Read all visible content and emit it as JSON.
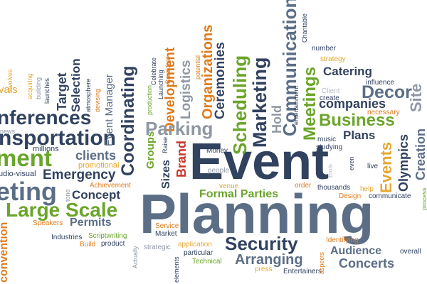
{
  "cloud": {
    "colors": {
      "navy": "#31425f",
      "slate": "#5b6e86",
      "grey": "#8e97a3",
      "light": "#b7bfca",
      "green": "#6aa52a",
      "orange": "#de7a1c",
      "gold": "#e7a733",
      "red": "#c9362a"
    },
    "words": {
      "planning": "Planning",
      "event": "Event",
      "large_scale": "Large Scale",
      "business": "Business",
      "meetings": "Meetings",
      "marketing": "Marketing",
      "scheduling": "Scheduling",
      "communication": "Communication",
      "security": "Security",
      "concerts": "Concerts",
      "audience": "Audience",
      "arranging": "Arranging",
      "formal_parties": "Formal Parties",
      "parking": "Parking",
      "coordinating": "Coordinating",
      "decor": "Decor",
      "companies": "companies",
      "catering": "Catering",
      "plans": "Plans",
      "events": "Events",
      "olympics": "Olympics",
      "creation": "Creation",
      "site": "Site",
      "hold": "Hold",
      "brand": "Brand",
      "organizations": "Organizations",
      "development": "Development",
      "logistics": "Logistics",
      "ceremonies": "Ceremonies",
      "groups": "Groups",
      "sizes": "Sizes",
      "clients": "clients",
      "emergency": "Emergency",
      "concept": "Concept",
      "permits": "Permits",
      "transportation": "nsportation",
      "conferences": "nferences",
      "management": "ment",
      "ticketing": "eting",
      "target": "Target",
      "selection": "Selection",
      "event_manager": "Event Manager",
      "vals": "vals",
      "millions": "millions",
      "news": "news",
      "audio_visual": "udio-visual",
      "promotional": "promotional",
      "achievement": "Achievement",
      "tone": "tone",
      "speakers": "Speakers",
      "industries": "Industries",
      "scriptwriting": "Scriptwriting",
      "build": "Build",
      "product": "product",
      "actually": "Actually",
      "elements": "elements",
      "strategic": "strategic",
      "application": "application",
      "particular": "particular",
      "technical": "Technical",
      "service": "Service",
      "market": "Market",
      "money": "Money",
      "people": "people",
      "venue": "venue",
      "order": "order",
      "thousands": "thousands",
      "design": "Design",
      "help": "help",
      "communicate": "communicate",
      "process": "process",
      "identifying": "Identifying",
      "press": "press",
      "entertainers": "Entertainers",
      "aspects": "aspects",
      "overall": "overall",
      "live": "live",
      "even": "even",
      "tools": "tools",
      "music": "music",
      "studying": "studying",
      "necessary": "necessary",
      "create": "create",
      "client": "Client",
      "influence": "influence",
      "strategy": "strategy",
      "number": "number",
      "charitable": "Charitable",
      "entertainment": "entertainment",
      "potential": "potential",
      "celebrate": "Celebrate",
      "launching": "Launching",
      "breakfast": "Breakfast",
      "production": "production",
      "permits_word": "permits",
      "raise": "Raise",
      "atmosphere": "atmosphere",
      "devising": "devising",
      "launches": "launches",
      "building": "building",
      "acquiring": "acquiring",
      "involves": "involves",
      "convention": "convention"
    }
  }
}
